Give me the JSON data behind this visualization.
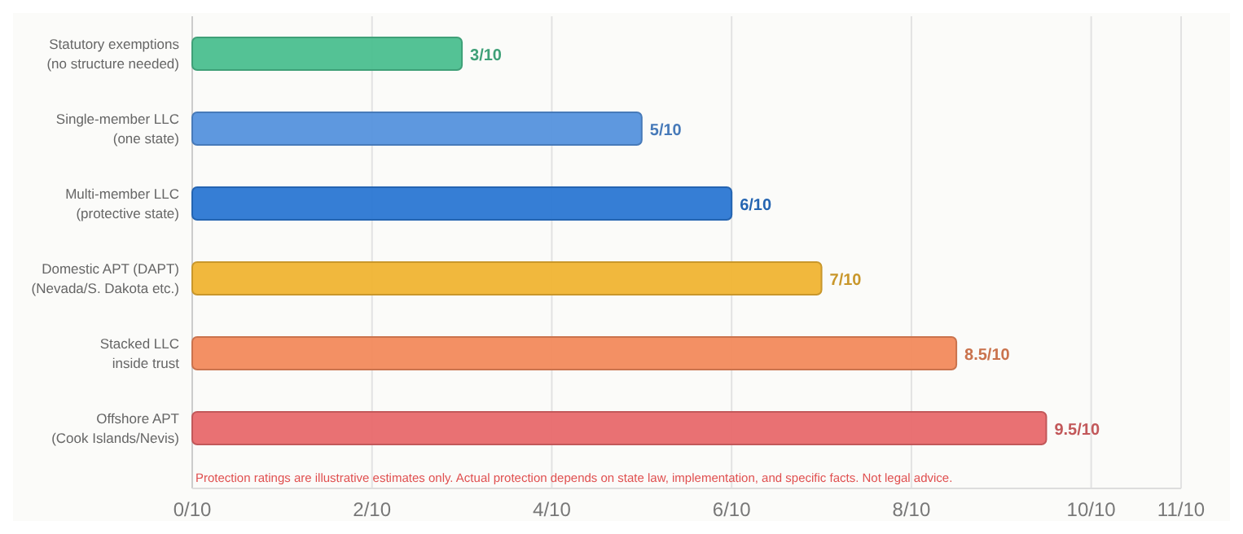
{
  "chart_data": {
    "type": "bar",
    "orientation": "horizontal",
    "categories": [
      "Statutory exemptions\n(no structure needed)",
      "Single-member LLC\n(one state)",
      "Multi-member LLC\n(protective state)",
      "Domestic APT (DAPT)\n(Nevada/S. Dakota etc.)",
      "Stacked LLC\ninside trust",
      "Offshore APT\n(Cook Islands/Nevis)"
    ],
    "values": [
      0.3,
      0.5,
      0.6,
      0.7,
      0.85,
      0.95
    ],
    "colors": [
      "#4bbf8f",
      "#5592dd",
      "#2b77d3",
      "#f0b433",
      "#f28a5c",
      "#e8696b"
    ],
    "value_labels": [
      "3/10",
      "5/10",
      "6/10",
      "7/10",
      "8.5/10",
      "9.5/10"
    ],
    "xlim": [
      0,
      1.1
    ],
    "xticks": [
      {
        "value": 0,
        "label": "0/10"
      },
      {
        "value": 0.2,
        "label": "2/10"
      },
      {
        "value": 0.4,
        "label": "4/10"
      },
      {
        "value": 0.6,
        "label": "6/10"
      },
      {
        "value": 0.8,
        "label": "8/10"
      },
      {
        "value": 1,
        "label": "10/10"
      },
      {
        "value": 1.1,
        "label": "11/10"
      }
    ],
    "grid": "x",
    "annotations": [
      "Protection ratings are illustrative estimates only. Actual protection depends on state law, implementation, and specific facts. Not legal advice."
    ]
  }
}
